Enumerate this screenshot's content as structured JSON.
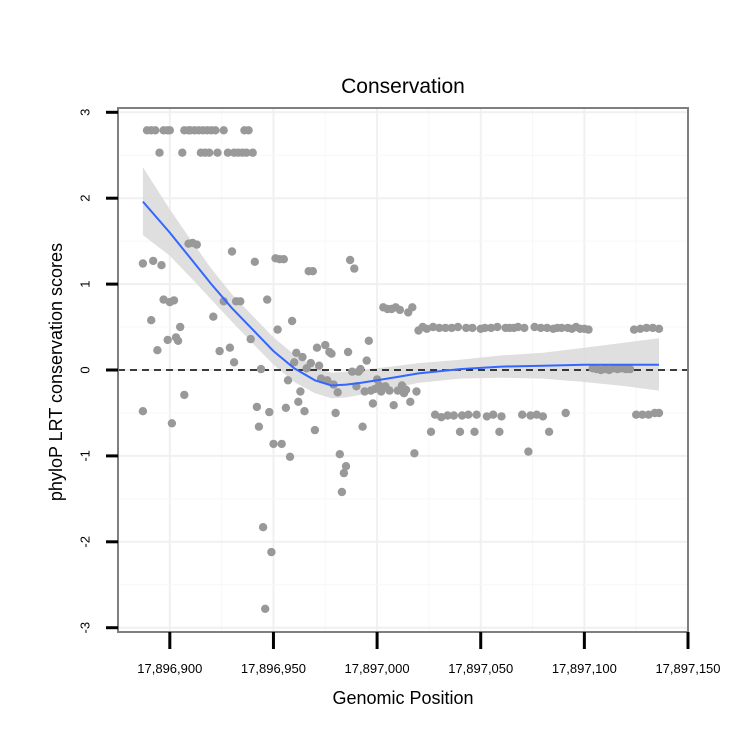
{
  "chart_data": {
    "type": "scatter",
    "title": "Conservation",
    "xlabel": "Genomic Position",
    "ylabel": "phyloP LRT conservation scores",
    "xlim": [
      17896875,
      17897150
    ],
    "ylim": [
      -3.05,
      3.05
    ],
    "x_ticks": [
      17896900,
      17896950,
      17897000,
      17897050,
      17897100,
      17897150
    ],
    "x_tick_labels": [
      "17,896,900",
      "17,896,950",
      "17,897,000",
      "17,897,050",
      "17,897,100",
      "17,897,150"
    ],
    "y_ticks": [
      -3,
      -2,
      -1,
      0,
      1,
      2,
      3
    ],
    "y_tick_labels": [
      "-3",
      "-2",
      "-1",
      "0",
      "1",
      "2",
      "3"
    ],
    "grid": true,
    "reference_line": {
      "y": 0,
      "style": "dashed",
      "color": "#000000"
    },
    "points": [
      [
        17896887,
        -0.48
      ],
      [
        17896887,
        1.24
      ],
      [
        17896889,
        2.79
      ],
      [
        17896891,
        2.79
      ],
      [
        17896891,
        0.58
      ],
      [
        17896892,
        1.27
      ],
      [
        17896893,
        2.79
      ],
      [
        17896894,
        0.23
      ],
      [
        17896895,
        2.53
      ],
      [
        17896896,
        1.22
      ],
      [
        17896897,
        2.79
      ],
      [
        17896897,
        0.82
      ],
      [
        17896899,
        2.79
      ],
      [
        17896899,
        0.35
      ],
      [
        17896900,
        2.79
      ],
      [
        17896900,
        0.79
      ],
      [
        17896901,
        -0.62
      ],
      [
        17896902,
        0.81
      ],
      [
        17896903,
        0.38
      ],
      [
        17896904,
        0.34
      ],
      [
        17896905,
        0.5
      ],
      [
        17896906,
        2.53
      ],
      [
        17896907,
        2.79
      ],
      [
        17896907,
        -0.29
      ],
      [
        17896909,
        2.79
      ],
      [
        17896909,
        1.47
      ],
      [
        17896910,
        2.79
      ],
      [
        17896911,
        1.48
      ],
      [
        17896912,
        2.79
      ],
      [
        17896913,
        1.46
      ],
      [
        17896914,
        2.79
      ],
      [
        17896915,
        2.53
      ],
      [
        17896916,
        2.79
      ],
      [
        17896917,
        2.53
      ],
      [
        17896918,
        2.79
      ],
      [
        17896919,
        2.53
      ],
      [
        17896920,
        2.79
      ],
      [
        17896921,
        0.62
      ],
      [
        17896922,
        2.79
      ],
      [
        17896923,
        2.53
      ],
      [
        17896924,
        0.22
      ],
      [
        17896926,
        2.79
      ],
      [
        17896926,
        0.8
      ],
      [
        17896928,
        2.53
      ],
      [
        17896929,
        0.26
      ],
      [
        17896930,
        1.38
      ],
      [
        17896931,
        2.53
      ],
      [
        17896931,
        0.09
      ],
      [
        17896932,
        0.8
      ],
      [
        17896933,
        2.53
      ],
      [
        17896934,
        0.8
      ],
      [
        17896935,
        2.53
      ],
      [
        17896936,
        2.79
      ],
      [
        17896937,
        2.53
      ],
      [
        17896938,
        2.79
      ],
      [
        17896939,
        0.36
      ],
      [
        17896940,
        2.53
      ],
      [
        17896941,
        1.26
      ],
      [
        17896942,
        -0.43
      ],
      [
        17896943,
        -0.66
      ],
      [
        17896944,
        0.01
      ],
      [
        17896945,
        -1.83
      ],
      [
        17896946,
        -2.78
      ],
      [
        17896947,
        0.82
      ],
      [
        17896948,
        -0.49
      ],
      [
        17896949,
        -2.12
      ],
      [
        17896950,
        -0.86
      ],
      [
        17896951,
        1.3
      ],
      [
        17896952,
        0.47
      ],
      [
        17896953,
        1.29
      ],
      [
        17896954,
        -0.86
      ],
      [
        17896955,
        1.29
      ],
      [
        17896956,
        -0.44
      ],
      [
        17896957,
        -0.12
      ],
      [
        17896958,
        -1.01
      ],
      [
        17896959,
        0.57
      ],
      [
        17896960,
        0.09
      ],
      [
        17896961,
        0.2
      ],
      [
        17896962,
        -0.37
      ],
      [
        17896963,
        -0.25
      ],
      [
        17896964,
        0.15
      ],
      [
        17896965,
        -0.48
      ],
      [
        17896966,
        0.02
      ],
      [
        17896967,
        1.15
      ],
      [
        17896968,
        0.08
      ],
      [
        17896969,
        1.15
      ],
      [
        17896970,
        -0.7
      ],
      [
        17896971,
        0.26
      ],
      [
        17896972,
        0.05
      ],
      [
        17896973,
        -0.1
      ],
      [
        17896975,
        0.29
      ],
      [
        17896976,
        -0.12
      ],
      [
        17896977,
        0.21
      ],
      [
        17896978,
        0.19
      ],
      [
        17896979,
        -0.17
      ],
      [
        17896980,
        -0.5
      ],
      [
        17896981,
        -0.26
      ],
      [
        17896982,
        -0.98
      ],
      [
        17896983,
        -1.42
      ],
      [
        17896984,
        -1.2
      ],
      [
        17896985,
        -1.12
      ],
      [
        17896986,
        0.21
      ],
      [
        17896987,
        1.28
      ],
      [
        17896988,
        -0.02
      ],
      [
        17896989,
        1.18
      ],
      [
        17896990,
        -0.19
      ],
      [
        17896991,
        -0.02
      ],
      [
        17896992,
        0.01
      ],
      [
        17896993,
        -0.66
      ],
      [
        17896994,
        -0.25
      ],
      [
        17896995,
        0.11
      ],
      [
        17896996,
        0.34
      ],
      [
        17896997,
        -0.24
      ],
      [
        17896998,
        -0.39
      ],
      [
        17896999,
        -0.22
      ],
      [
        17897000,
        -0.11
      ],
      [
        17897001,
        -0.18
      ],
      [
        17897002,
        -0.25
      ],
      [
        17897003,
        0.73
      ],
      [
        17897004,
        -0.19
      ],
      [
        17897005,
        0.71
      ],
      [
        17897006,
        -0.24
      ],
      [
        17897007,
        0.71
      ],
      [
        17897008,
        -0.41
      ],
      [
        17897009,
        0.73
      ],
      [
        17897010,
        -0.24
      ],
      [
        17897011,
        0.7
      ],
      [
        17897012,
        -0.18
      ],
      [
        17897013,
        -0.27
      ],
      [
        17897014,
        -0.23
      ],
      [
        17897015,
        0.67
      ],
      [
        17897016,
        -0.37
      ],
      [
        17897017,
        0.73
      ],
      [
        17897018,
        -0.97
      ],
      [
        17897019,
        -0.25
      ],
      [
        17897020,
        0.46
      ],
      [
        17897022,
        0.5
      ],
      [
        17897024,
        0.48
      ],
      [
        17897026,
        -0.72
      ],
      [
        17897027,
        0.5
      ],
      [
        17897028,
        -0.52
      ],
      [
        17897030,
        0.49
      ],
      [
        17897031,
        -0.55
      ],
      [
        17897033,
        0.49
      ],
      [
        17897034,
        -0.53
      ],
      [
        17897036,
        0.49
      ],
      [
        17897037,
        -0.53
      ],
      [
        17897039,
        0.5
      ],
      [
        17897040,
        -0.72
      ],
      [
        17897041,
        -0.53
      ],
      [
        17897043,
        0.49
      ],
      [
        17897044,
        -0.52
      ],
      [
        17897046,
        0.49
      ],
      [
        17897047,
        -0.72
      ],
      [
        17897048,
        -0.52
      ],
      [
        17897050,
        0.48
      ],
      [
        17897052,
        0.49
      ],
      [
        17897053,
        -0.54
      ],
      [
        17897055,
        0.49
      ],
      [
        17897056,
        -0.52
      ],
      [
        17897058,
        0.5
      ],
      [
        17897059,
        -0.72
      ],
      [
        17897060,
        -0.54
      ],
      [
        17897062,
        0.49
      ],
      [
        17897064,
        0.49
      ],
      [
        17897066,
        0.49
      ],
      [
        17897068,
        0.5
      ],
      [
        17897070,
        -0.52
      ],
      [
        17897071,
        0.49
      ],
      [
        17897073,
        -0.95
      ],
      [
        17897074,
        -0.53
      ],
      [
        17897076,
        0.5
      ],
      [
        17897077,
        -0.52
      ],
      [
        17897079,
        0.49
      ],
      [
        17897080,
        -0.54
      ],
      [
        17897082,
        0.49
      ],
      [
        17897083,
        -0.72
      ],
      [
        17897085,
        0.48
      ],
      [
        17897087,
        0.49
      ],
      [
        17897089,
        0.49
      ],
      [
        17897091,
        -0.5
      ],
      [
        17897092,
        0.49
      ],
      [
        17897094,
        0.48
      ],
      [
        17897096,
        0.5
      ],
      [
        17897098,
        0.48
      ],
      [
        17897100,
        0.48
      ],
      [
        17897102,
        0.47
      ],
      [
        17897104,
        0.02
      ],
      [
        17897106,
        0.01
      ],
      [
        17897108,
        0.0
      ],
      [
        17897110,
        0.01
      ],
      [
        17897112,
        0.0
      ],
      [
        17897114,
        0.02
      ],
      [
        17897116,
        0.01
      ],
      [
        17897118,
        0.02
      ],
      [
        17897120,
        0.01
      ],
      [
        17897122,
        0.01
      ],
      [
        17897124,
        0.47
      ],
      [
        17897125,
        -0.52
      ],
      [
        17897127,
        0.48
      ],
      [
        17897128,
        -0.52
      ],
      [
        17897130,
        0.49
      ],
      [
        17897131,
        -0.52
      ],
      [
        17897133,
        0.49
      ],
      [
        17897134,
        -0.5
      ],
      [
        17897136,
        0.48
      ],
      [
        17897136,
        -0.5
      ]
    ],
    "smooth_line": {
      "color": "#3366FF",
      "x": [
        17896887,
        17896900,
        17896910,
        17896920,
        17896930,
        17896940,
        17896950,
        17896960,
        17896970,
        17896978,
        17896985,
        17896992,
        17897000,
        17897010,
        17897020,
        17897040,
        17897060,
        17897080,
        17897100,
        17897120,
        17897136
      ],
      "y": [
        1.96,
        1.6,
        1.3,
        1.0,
        0.72,
        0.47,
        0.22,
        0.02,
        -0.12,
        -0.18,
        -0.17,
        -0.15,
        -0.12,
        -0.08,
        -0.04,
        0.01,
        0.04,
        0.05,
        0.06,
        0.06,
        0.06
      ]
    },
    "confidence_band": {
      "color": "#D9D9D9",
      "lower": [
        1.57,
        1.33,
        1.08,
        0.82,
        0.56,
        0.31,
        0.06,
        -0.14,
        -0.27,
        -0.33,
        -0.32,
        -0.29,
        -0.25,
        -0.2,
        -0.15,
        -0.1,
        -0.09,
        -0.1,
        -0.14,
        -0.19,
        -0.24
      ],
      "upper": [
        2.36,
        1.87,
        1.52,
        1.18,
        0.88,
        0.63,
        0.38,
        0.18,
        0.03,
        -0.03,
        -0.02,
        0.0,
        0.02,
        0.05,
        0.08,
        0.12,
        0.17,
        0.2,
        0.26,
        0.32,
        0.37
      ]
    },
    "point_color": "#999999"
  }
}
